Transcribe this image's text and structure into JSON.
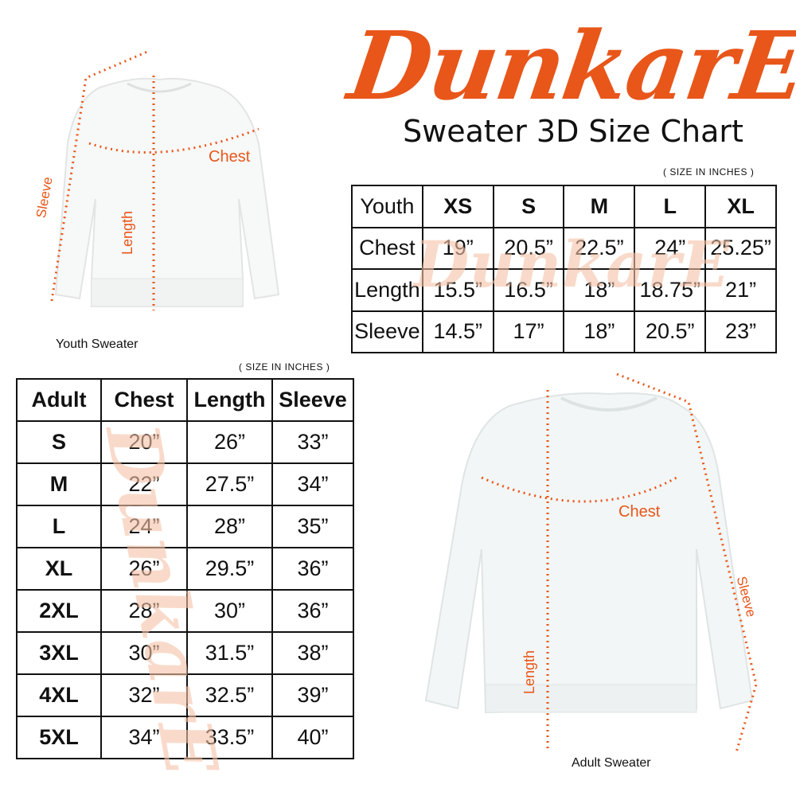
{
  "brand": {
    "logo": "DunkarE",
    "color": "#e8561a"
  },
  "title": "Sweater 3D Size Chart",
  "youth_table": {
    "unit_note": "( SIZE IN INCHES )",
    "headers": [
      "Youth",
      "XS",
      "S",
      "M",
      "L",
      "XL"
    ],
    "rows": [
      [
        "Chest",
        "19”",
        "20.5”",
        "22.5”",
        "24”",
        "25.25”"
      ],
      [
        "Length",
        "15.5”",
        "16.5”",
        "18”",
        "18.75”",
        "21”"
      ],
      [
        "Sleeve",
        "14.5”",
        "17”",
        "18”",
        "20.5”",
        "23”"
      ]
    ]
  },
  "adult_table": {
    "unit_note": "( SIZE IN INCHES )",
    "headers": [
      "Adult",
      "Chest",
      "Length",
      "Sleeve"
    ],
    "rows": [
      [
        "S",
        "20”",
        "26”",
        "33”"
      ],
      [
        "M",
        "22”",
        "27.5”",
        "34”"
      ],
      [
        "L",
        "24”",
        "28”",
        "35”"
      ],
      [
        "XL",
        "26”",
        "29.5”",
        "36”"
      ],
      [
        "2XL",
        "28”",
        "30”",
        "36”"
      ],
      [
        "3XL",
        "30”",
        "31.5”",
        "38”"
      ],
      [
        "4XL",
        "32”",
        "32.5”",
        "39”"
      ],
      [
        "5XL",
        "34”",
        "33.5”",
        "40”"
      ]
    ]
  },
  "youth_sweater": {
    "caption": "Youth Sweater",
    "chest": "Chest",
    "length": "Length",
    "sleeve": "Sleeve"
  },
  "adult_sweater": {
    "caption": "Adult Sweater",
    "chest": "Chest",
    "length": "Length",
    "sleeve": "Sleeve"
  }
}
